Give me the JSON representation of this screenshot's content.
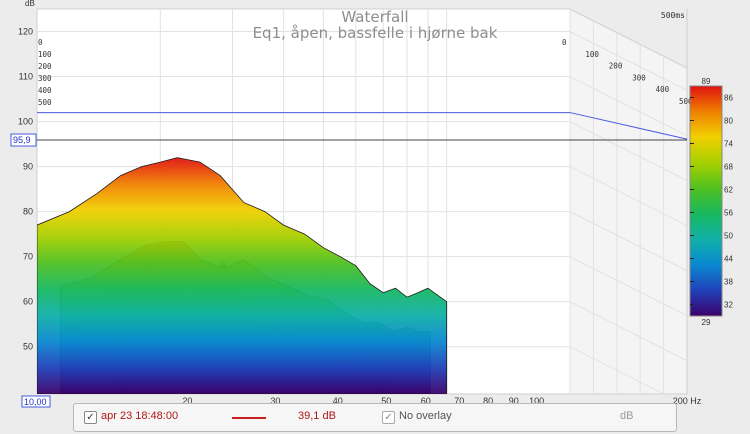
{
  "title": "Waterfall",
  "subtitle": "Eq1, åpen, bassfelle i hjørne bak",
  "time_window_label": "500ms",
  "chart_data": {
    "type": "waterfall-3d",
    "title": "Waterfall",
    "subtitle": "Eq1, åpen, bassfelle i hjørne bak",
    "y_unit": "dB",
    "y_range": [
      39.5,
      125
    ],
    "y_ticks": [
      50,
      60,
      70,
      80,
      90,
      100,
      110,
      120
    ],
    "x_unit": "Hz",
    "x_range": [
      10,
      200
    ],
    "x_ticks": [
      20,
      30,
      40,
      50,
      60,
      70,
      80,
      90,
      100,
      200
    ],
    "x_ticks_display": [
      "20",
      "30",
      "40",
      "50",
      "60",
      "70",
      "80",
      "90",
      "100",
      "200 Hz"
    ],
    "x_start_label": "10,00",
    "z_unit": "ms",
    "z_ticks": [
      0,
      100,
      200,
      300,
      400,
      500
    ],
    "limit_line_db": 102,
    "cursor_db": 95.9,
    "cursor_label": "95,9",
    "color_scale": {
      "min": 29,
      "max": 89,
      "ticks": [
        32,
        38,
        44,
        50,
        56,
        62,
        68,
        74,
        80,
        86
      ]
    },
    "series": [
      {
        "time_ms": 0,
        "x": [
          10,
          12,
          14,
          16,
          18,
          20,
          22,
          25,
          28,
          32,
          36,
          40,
          45,
          50,
          55,
          60,
          65,
          70,
          75,
          80,
          85,
          90,
          100
        ],
        "values": [
          77,
          80,
          84,
          88,
          90,
          91,
          92,
          91,
          88,
          82,
          80,
          77,
          75,
          72,
          70,
          68,
          64,
          62,
          63,
          61,
          62,
          63,
          60
        ]
      },
      {
        "time_ms": 100,
        "x": [
          10,
          12,
          14,
          16,
          18,
          20,
          22,
          25,
          28,
          32,
          36,
          40,
          45,
          50,
          55,
          60,
          65,
          70,
          75,
          80
        ],
        "values": [
          66,
          68,
          72,
          75,
          76,
          76,
          72,
          70,
          72,
          68,
          66,
          64,
          63,
          60,
          58,
          58,
          56,
          57,
          56,
          56
        ]
      },
      {
        "time_ms": 200,
        "x": [
          10,
          12,
          14,
          16,
          18,
          20,
          22,
          25,
          28,
          32,
          36,
          40,
          45,
          50,
          55,
          60,
          65
        ],
        "values": [
          62,
          68,
          73,
          71,
          65,
          70,
          74,
          62,
          60,
          58,
          57,
          55,
          54,
          53,
          52,
          51,
          50
        ]
      },
      {
        "time_ms": 300,
        "x": [
          10,
          12,
          14,
          16,
          18,
          20,
          22,
          25,
          28,
          32,
          36,
          40,
          45,
          50
        ],
        "values": [
          58,
          64,
          70,
          64,
          60,
          62,
          66,
          58,
          57,
          55,
          54,
          52,
          51,
          50
        ]
      },
      {
        "time_ms": 400,
        "x": [
          10,
          12,
          14,
          16,
          18,
          20,
          22,
          25,
          28,
          32,
          36,
          40
        ],
        "values": [
          52,
          56,
          62,
          58,
          54,
          56,
          60,
          54,
          52,
          51,
          50,
          49
        ]
      },
      {
        "time_ms": 500,
        "x": [
          10,
          12,
          14,
          16,
          18,
          20,
          22,
          25,
          28,
          30
        ],
        "values": [
          47,
          49,
          54,
          60,
          55,
          51,
          53,
          50,
          47,
          45
        ]
      }
    ]
  },
  "status_bar": {
    "measurement_checked": true,
    "measurement_name": "apr 23 18:48:00",
    "level": "39,1 dB",
    "trace_color": "#cc1f1f",
    "overlay_checked": true,
    "overlay_label": "No overlay",
    "overlay_unit": "dB"
  }
}
